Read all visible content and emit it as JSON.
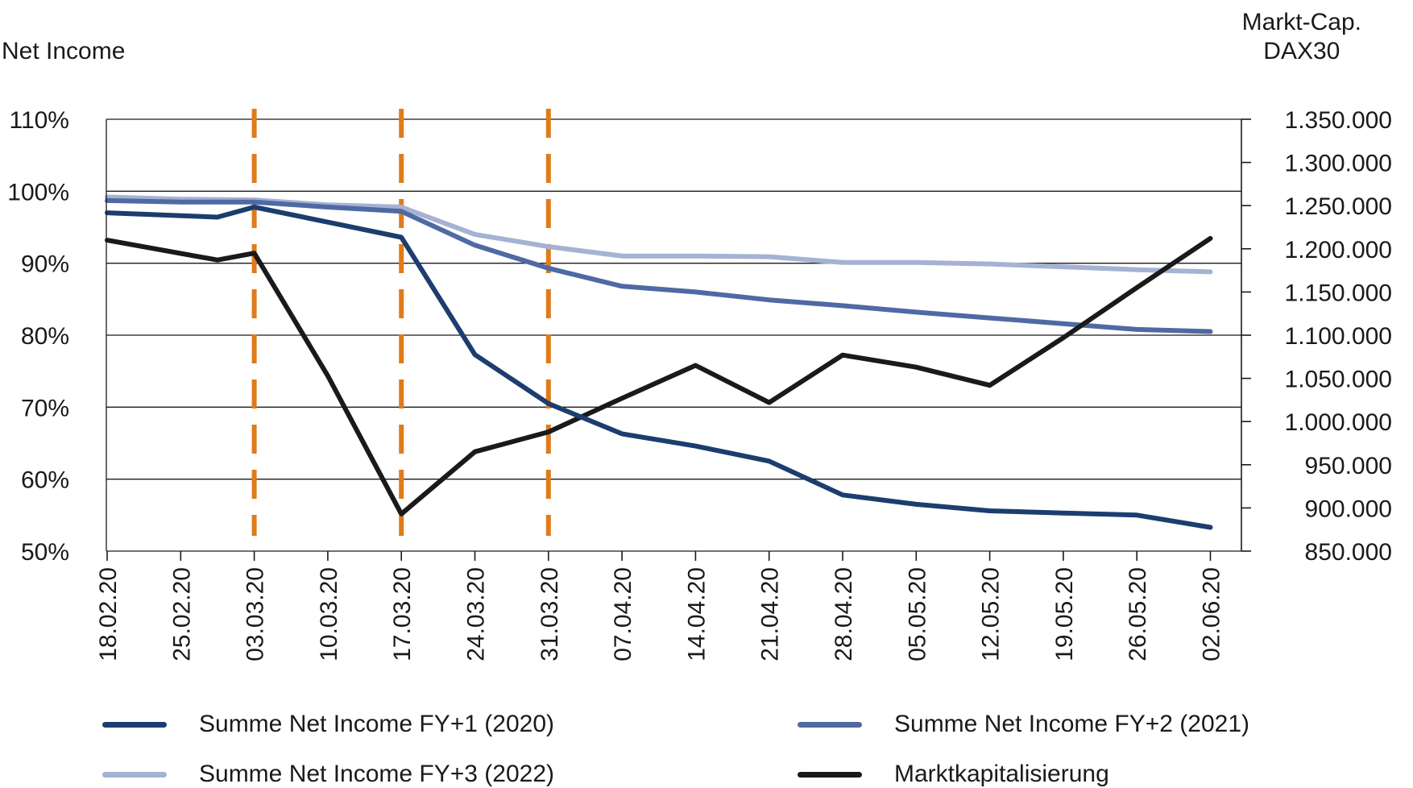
{
  "chart_data": {
    "type": "line",
    "left_axis_title": "Net Income",
    "right_axis_title_line1": "Markt-Cap.",
    "right_axis_title_line2": "DAX30",
    "categories": [
      "18.02.20",
      "25.02.20",
      "03.03.20",
      "10.03.20",
      "17.03.20",
      "24.03.20",
      "31.03.20",
      "07.04.20",
      "14.04.20",
      "21.04.20",
      "28.04.20",
      "05.05.20",
      "12.05.20",
      "19.05.20",
      "26.05.20",
      "02.06.20"
    ],
    "left_axis": {
      "min": 50,
      "max": 110,
      "step": 10,
      "ticks": [
        "50%",
        "60%",
        "70%",
        "80%",
        "90%",
        "100%",
        "110%"
      ]
    },
    "right_axis": {
      "min": 850000,
      "max": 1350000,
      "ticks": [
        "850.000",
        "900.000",
        "950.000",
        "1.000.000",
        "1.050.000",
        "1.100.000",
        "1.150.000",
        "1.200.000",
        "1.250.000",
        "1.300.000",
        "1.350.000"
      ]
    },
    "event_markers": [
      "03.03.20",
      "17.03.20",
      "31.03.20"
    ],
    "series": [
      {
        "name": "Summe Net Income FY+1 (2020)",
        "axis": "left",
        "color": "#1c3d6e",
        "points": [
          [
            0,
            97.0
          ],
          [
            1.5,
            96.4
          ],
          [
            2,
            97.8
          ],
          [
            3,
            95.7
          ],
          [
            4,
            93.6
          ],
          [
            5,
            77.3
          ],
          [
            6,
            70.5
          ],
          [
            7,
            66.3
          ],
          [
            8,
            64.6
          ],
          [
            9,
            62.5
          ],
          [
            10,
            57.8
          ],
          [
            11,
            56.5
          ],
          [
            12,
            55.6
          ],
          [
            13,
            55.3
          ],
          [
            14,
            55.0
          ],
          [
            15,
            53.3
          ]
        ]
      },
      {
        "name": "Summe Net Income FY+2 (2021)",
        "axis": "left",
        "color": "#4f6aa3",
        "points": [
          [
            0,
            98.7
          ],
          [
            1,
            98.5
          ],
          [
            2,
            98.5
          ],
          [
            3,
            97.8
          ],
          [
            4,
            97.2
          ],
          [
            5,
            92.5
          ],
          [
            6,
            89.3
          ],
          [
            7,
            86.8
          ],
          [
            8,
            86.0
          ],
          [
            9,
            84.9
          ],
          [
            10,
            84.1
          ],
          [
            11,
            83.2
          ],
          [
            12,
            82.4
          ],
          [
            13,
            81.6
          ],
          [
            14,
            80.8
          ],
          [
            15,
            80.5
          ]
        ]
      },
      {
        "name": "Summe Net Income FY+3 (2022)",
        "axis": "left",
        "color": "#a5b2d3",
        "points": [
          [
            0,
            99.2
          ],
          [
            1,
            98.9
          ],
          [
            2,
            98.8
          ],
          [
            3,
            98.1
          ],
          [
            4,
            97.8
          ],
          [
            5,
            94.0
          ],
          [
            6,
            92.3
          ],
          [
            7,
            91.0
          ],
          [
            8,
            91.0
          ],
          [
            9,
            90.9
          ],
          [
            10,
            90.1
          ],
          [
            11,
            90.1
          ],
          [
            12,
            89.9
          ],
          [
            13,
            89.5
          ],
          [
            14,
            89.1
          ],
          [
            15,
            88.8
          ]
        ]
      },
      {
        "name": "Marktkapitalisierung",
        "axis": "right",
        "color": "#1a1a1a",
        "points": [
          [
            0,
            1210000
          ],
          [
            1.5,
            1187000
          ],
          [
            2,
            1195000
          ],
          [
            3,
            1053000
          ],
          [
            4,
            893000
          ],
          [
            5,
            965000
          ],
          [
            6,
            988000
          ],
          [
            7,
            1027000
          ],
          [
            8,
            1065000
          ],
          [
            9,
            1022000
          ],
          [
            10,
            1077000
          ],
          [
            11,
            1063000
          ],
          [
            12,
            1042000
          ],
          [
            13,
            1097000
          ],
          [
            14,
            1155000
          ],
          [
            15,
            1212000
          ]
        ]
      }
    ],
    "marker_color": "#e07b1a",
    "grid": true,
    "legend_position": "bottom"
  }
}
